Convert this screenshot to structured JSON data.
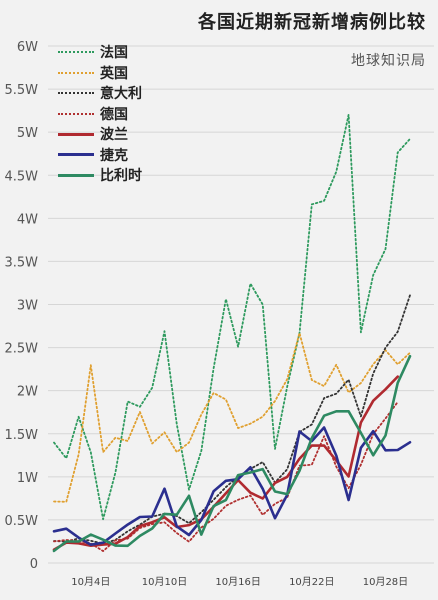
{
  "title": "各国近期新冠新增病例比较",
  "source": "地球知识局",
  "chart_data": {
    "type": "line",
    "title": "各国近期新冠新增病例比较",
    "ylim": [
      0,
      60000
    ],
    "yticks": [
      {
        "value": 0,
        "label": "0"
      },
      {
        "value": 5000,
        "label": "0.5W"
      },
      {
        "value": 10000,
        "label": "1W"
      },
      {
        "value": 15000,
        "label": "1.5W"
      },
      {
        "value": 20000,
        "label": "2W"
      },
      {
        "value": 25000,
        "label": "2.5W"
      },
      {
        "value": 30000,
        "label": "3W"
      },
      {
        "value": 35000,
        "label": "3.5W"
      },
      {
        "value": 40000,
        "label": "4W"
      },
      {
        "value": 45000,
        "label": "4.5W"
      },
      {
        "value": 50000,
        "label": "5W"
      },
      {
        "value": 55000,
        "label": "5.5W"
      },
      {
        "value": 60000,
        "label": "6W"
      }
    ],
    "x": [
      "10月1日",
      "10月2日",
      "10月3日",
      "10月4日",
      "10月5日",
      "10月6日",
      "10月7日",
      "10月8日",
      "10月9日",
      "10月10日",
      "10月11日",
      "10月12日",
      "10月13日",
      "10月14日",
      "10月15日",
      "10月16日",
      "10月17日",
      "10月18日",
      "10月19日",
      "10月20日",
      "10月21日",
      "10月22日",
      "10月23日",
      "10月24日",
      "10月25日",
      "10月26日",
      "10月27日",
      "10月28日",
      "10月29日",
      "10月30日",
      "10月31日"
    ],
    "xticks": [
      "10月4日",
      "10月10日",
      "10月16日",
      "10月22日",
      "10月28日"
    ],
    "grid": true,
    "legend_position": "top-left",
    "series": [
      {
        "name": "法国",
        "color": "#2e9a5e",
        "dash": "dotted",
        "width": 1.8,
        "values": [
          13970,
          12148,
          16972,
          12845,
          5084,
          10489,
          18746,
          18129,
          20339,
          26896,
          16101,
          8505,
          12993,
          22591,
          30621,
          25086,
          32427,
          30000,
          13243,
          20468,
          26676,
          41622,
          42032,
          45422,
          52010,
          26771,
          33417,
          36437,
          47637,
          49215,
          null
        ]
      },
      {
        "name": "英国",
        "color": "#e0a030",
        "dash": "dotted",
        "width": 1.8,
        "values": [
          7143,
          7108,
          12594,
          22961,
          12872,
          14542,
          14162,
          17540,
          13864,
          15166,
          12872,
          13972,
          17234,
          19724,
          18980,
          15650,
          16171,
          16982,
          18804,
          21331,
          26688,
          21242,
          20530,
          23012,
          19790,
          20890,
          23065,
          24701,
          23065,
          24405,
          null
        ]
      },
      {
        "name": "意大利",
        "color": "#333333",
        "dash": "dotted",
        "width": 1.8,
        "values": [
          2548,
          2499,
          2844,
          2578,
          2257,
          2677,
          3678,
          4458,
          5372,
          5724,
          5456,
          4619,
          5901,
          7332,
          8804,
          10010,
          10925,
          11705,
          9338,
          10874,
          15199,
          16078,
          19143,
          19644,
          21273,
          17012,
          21994,
          24991,
          26831,
          31084,
          null
        ]
      },
      {
        "name": "德国",
        "color": "#b03030",
        "dash": "dotted",
        "width": 1.8,
        "values": [
          2503,
          2673,
          2563,
          2279,
          1382,
          2639,
          2828,
          4058,
          4516,
          4721,
          3483,
          2467,
          4122,
          5132,
          6638,
          7334,
          7830,
          5587,
          6868,
          7595,
          11287,
          11409,
          14714,
          11176,
          8685,
          11409,
          14964,
          16774,
          18681,
          null,
          null
        ]
      },
      {
        "name": "波兰",
        "color": "#b02a30",
        "dash": "solid",
        "width": 2.6,
        "values": [
          1552,
          2367,
          2292,
          2006,
          2131,
          2236,
          3003,
          4280,
          4739,
          5300,
          4178,
          4394,
          5068,
          6526,
          8099,
          9622,
          8155,
          7482,
          9291,
          9997,
          12107,
          13632,
          13628,
          11882,
          10040,
          16300,
          18820,
          20156,
          21629,
          null,
          null
        ]
      },
      {
        "name": "捷克",
        "color": "#2b2f8f",
        "dash": "solid",
        "width": 2.6,
        "values": [
          3682,
          3985,
          2951,
          2124,
          2359,
          3426,
          4457,
          5335,
          5394,
          8618,
          4252,
          3255,
          4988,
          8325,
          9544,
          9720,
          11105,
          8617,
          5202,
          7919,
          15258,
          14151,
          15727,
          12470,
          7313,
          13374,
          15295,
          13080,
          13112,
          14010,
          null
        ]
      },
      {
        "name": "比利时",
        "color": "#2e8a62",
        "dash": "solid",
        "width": 2.6,
        "values": [
          1400,
          2500,
          2500,
          3300,
          2700,
          2020,
          2000,
          3150,
          4000,
          5700,
          5600,
          7800,
          3300,
          6600,
          7300,
          10200,
          10500,
          10900,
          8300,
          8000,
          10700,
          14500,
          17100,
          17600,
          17600,
          15100,
          12500,
          14800,
          20900,
          24000,
          null
        ]
      }
    ]
  }
}
